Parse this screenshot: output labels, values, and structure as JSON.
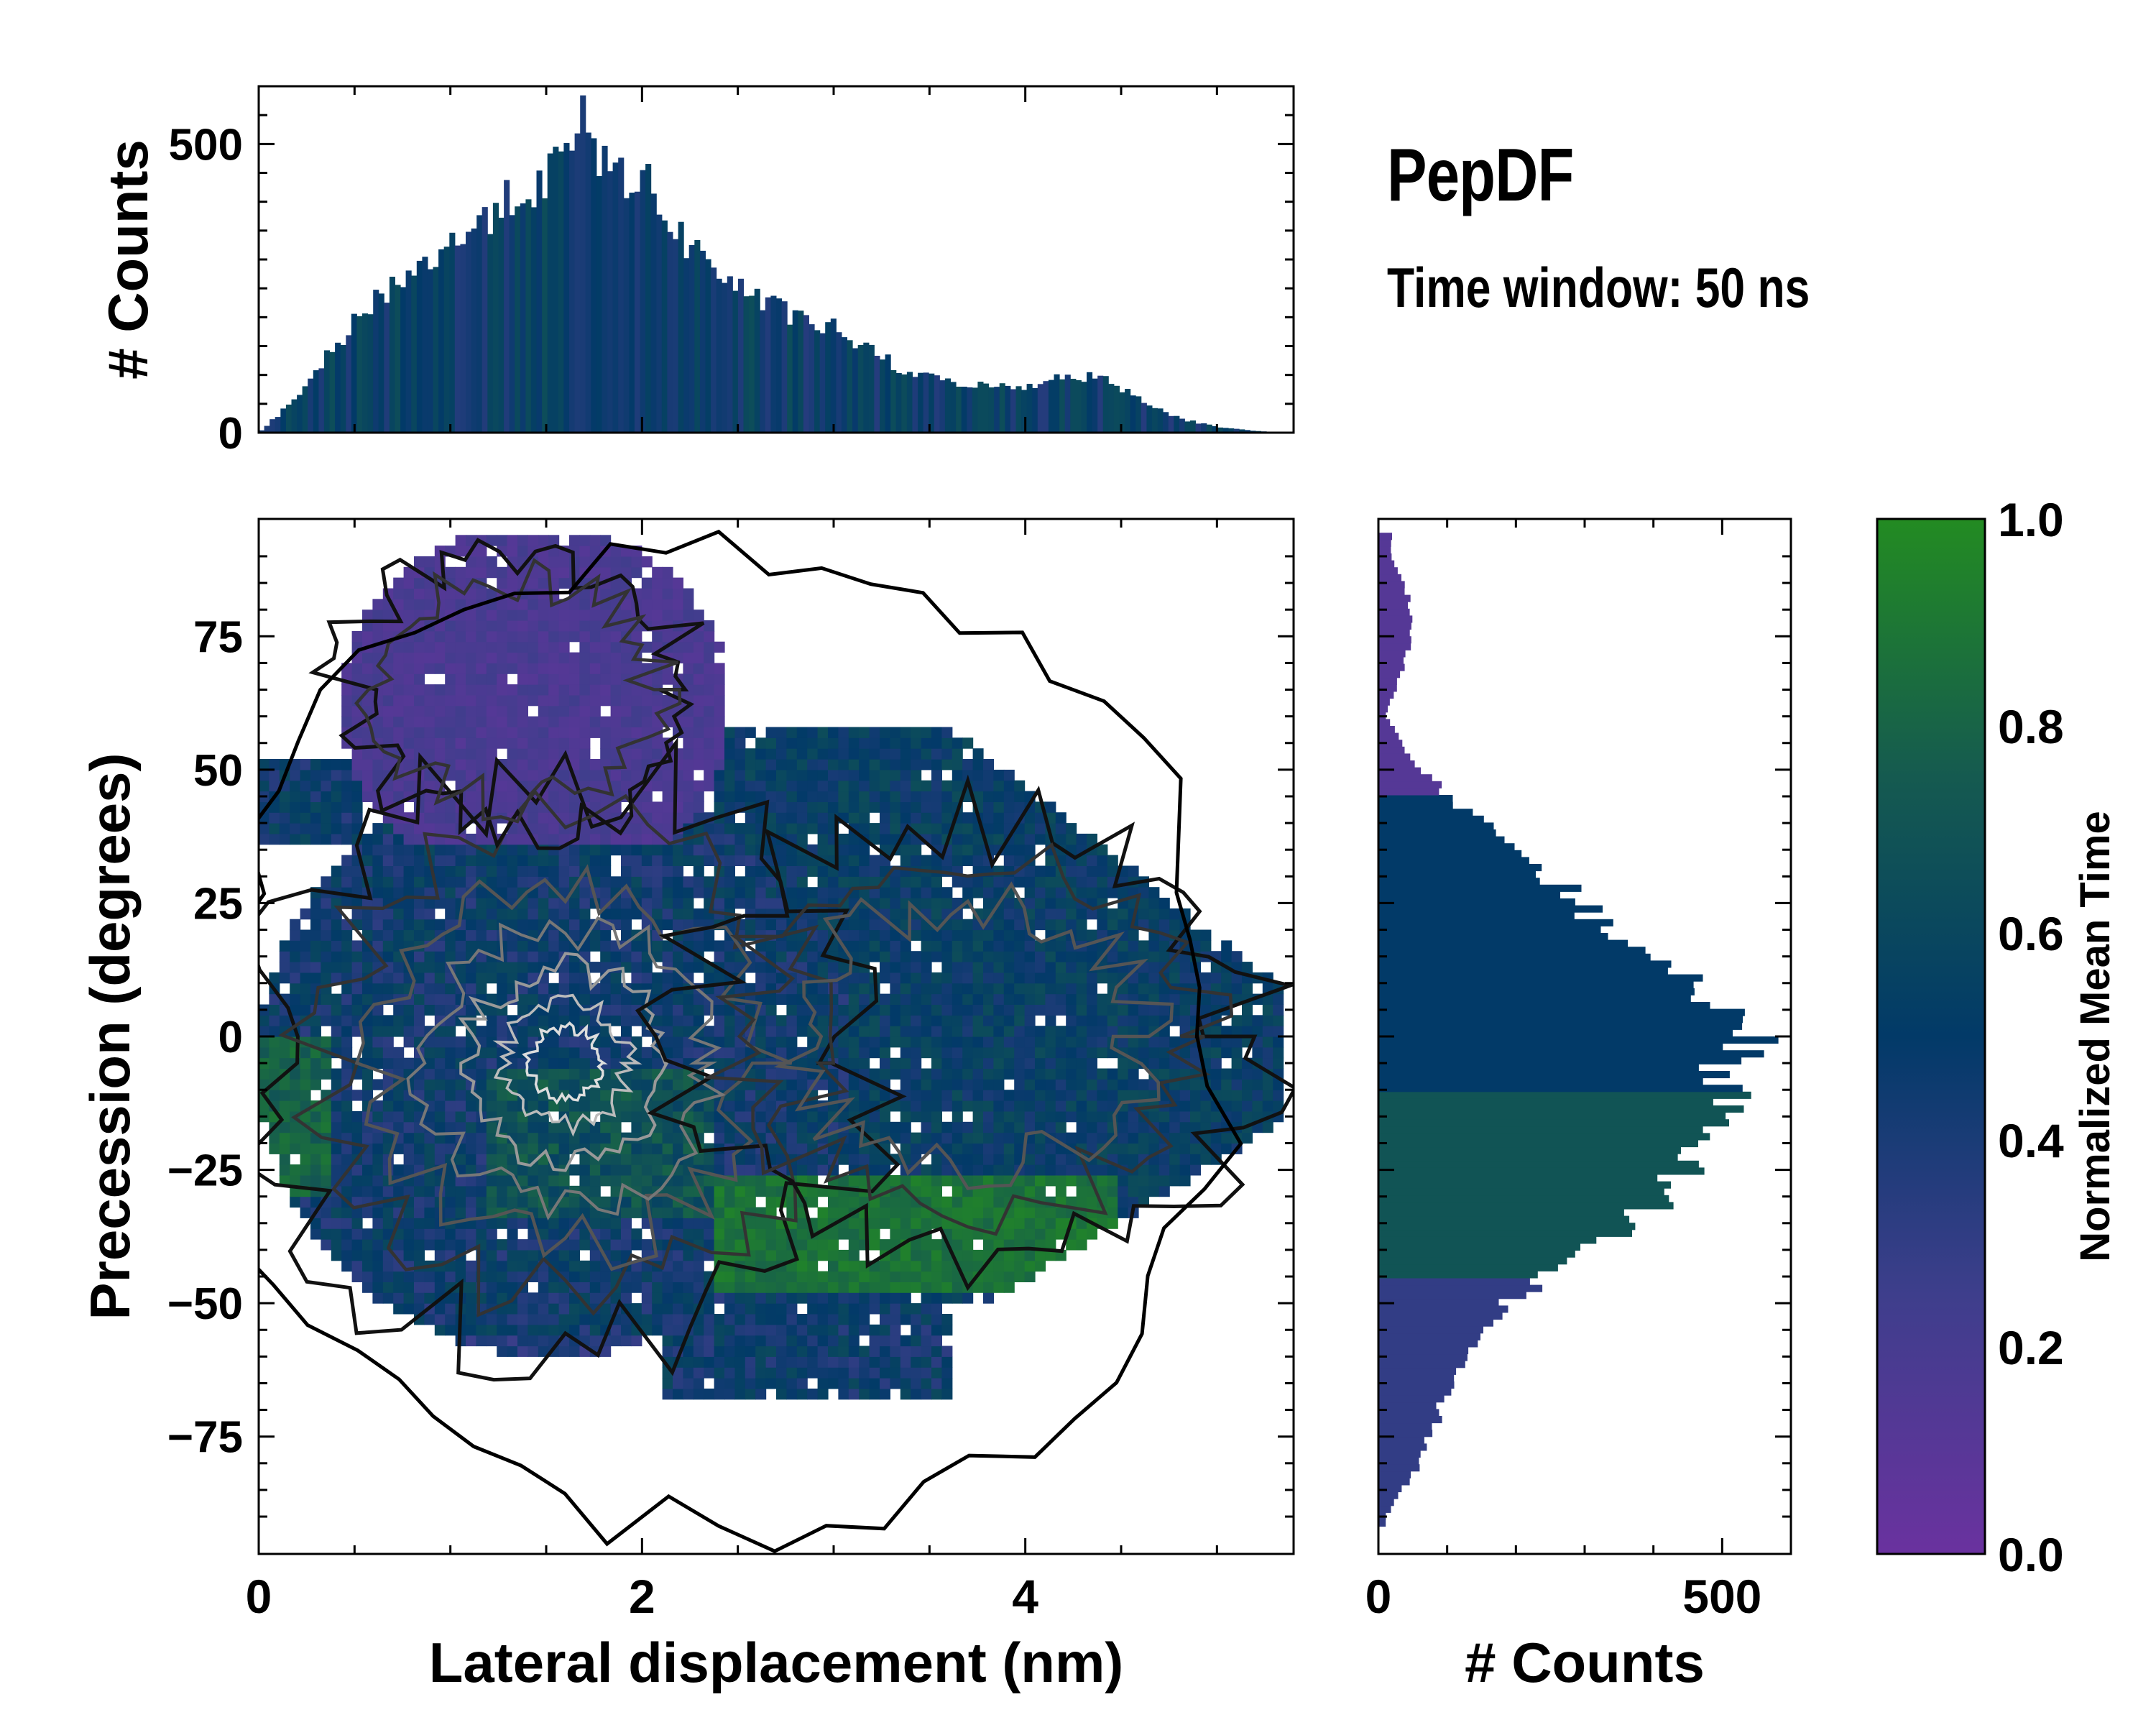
{
  "title": "PepDF",
  "subtitle": "Time window: 50 ns",
  "colors": {
    "cmap_low": "#6a329f",
    "cmap_q1": "#3e3e8c",
    "cmap_mid": "#023a68",
    "cmap_q3": "#155a50",
    "cmap_high": "#238b22"
  },
  "chart_data": [
    {
      "id": "main",
      "type": "heatmap",
      "xlabel": "Lateral displacement (nm)",
      "ylabel": "Precession (degrees)",
      "xlim": [
        0,
        5.4
      ],
      "ylim": [
        -97,
        97
      ],
      "xticks": [
        0,
        2,
        4
      ],
      "xtick_labels": [
        "0",
        "2",
        "4"
      ],
      "yticks": [
        -75,
        -50,
        -25,
        0,
        25,
        50,
        75
      ],
      "ytick_labels": [
        "−75",
        "−50",
        "−25",
        "0",
        "25",
        "50",
        "75"
      ],
      "description_series": "color = normalized mean time per (displacement, precession) bin; contours = count density",
      "regions": [
        {
          "name": "upper lobe",
          "x_range": [
            0.5,
            2.4
          ],
          "y_range": [
            35,
            95
          ],
          "mean_time": 0.15
        },
        {
          "name": "central core",
          "x_range": [
            0.1,
            3.0
          ],
          "y_range": [
            -60,
            45
          ],
          "mean_time": 0.45
        },
        {
          "name": "right lobe",
          "x_range": [
            2.5,
            5.3
          ],
          "y_range": [
            -55,
            60
          ],
          "mean_time": 0.55
        },
        {
          "name": "green band",
          "x_range": [
            2.4,
            4.5
          ],
          "y_range": [
            -48,
            -25
          ],
          "mean_time": 0.9
        }
      ]
    },
    {
      "id": "top_hist",
      "type": "bar",
      "ylabel": "# Counts",
      "ylim": [
        0,
        600
      ],
      "yticks": [
        0,
        500
      ],
      "ytick_labels": [
        "0",
        "500"
      ],
      "x": [
        0.0,
        0.2,
        0.4,
        0.6,
        0.8,
        1.0,
        1.2,
        1.4,
        1.6,
        1.7,
        1.8,
        2.0,
        2.2,
        2.4,
        2.6,
        2.8,
        3.0,
        3.2,
        3.4,
        3.6,
        3.8,
        4.0,
        4.2,
        4.4,
        4.6,
        4.8,
        5.0,
        5.2,
        5.4
      ],
      "values": [
        0,
        60,
        150,
        230,
        280,
        320,
        380,
        420,
        470,
        540,
        460,
        440,
        340,
        280,
        230,
        200,
        180,
        140,
        100,
        90,
        80,
        80,
        100,
        95,
        60,
        25,
        10,
        3,
        0
      ]
    },
    {
      "id": "right_hist",
      "type": "bar",
      "orientation": "horizontal",
      "xlabel": "# Counts",
      "xlim": [
        0,
        600
      ],
      "xticks": [
        0,
        500
      ],
      "xtick_labels": [
        "0",
        "500"
      ],
      "y": [
        -90,
        -80,
        -70,
        -60,
        -50,
        -40,
        -30,
        -20,
        -10,
        0,
        10,
        20,
        30,
        40,
        50,
        60,
        70,
        80,
        90
      ],
      "values": [
        10,
        60,
        90,
        120,
        190,
        300,
        420,
        470,
        500,
        540,
        440,
        340,
        250,
        150,
        60,
        10,
        40,
        50,
        20
      ]
    },
    {
      "id": "colorbar",
      "type": "colorbar",
      "label": "Normalized Mean Time",
      "range": [
        0,
        1
      ],
      "ticks": [
        0.0,
        0.2,
        0.4,
        0.6,
        0.8,
        1.0
      ],
      "tick_labels": [
        "0.0",
        "0.2",
        "0.4",
        "0.6",
        "0.8",
        "1.0"
      ]
    }
  ]
}
